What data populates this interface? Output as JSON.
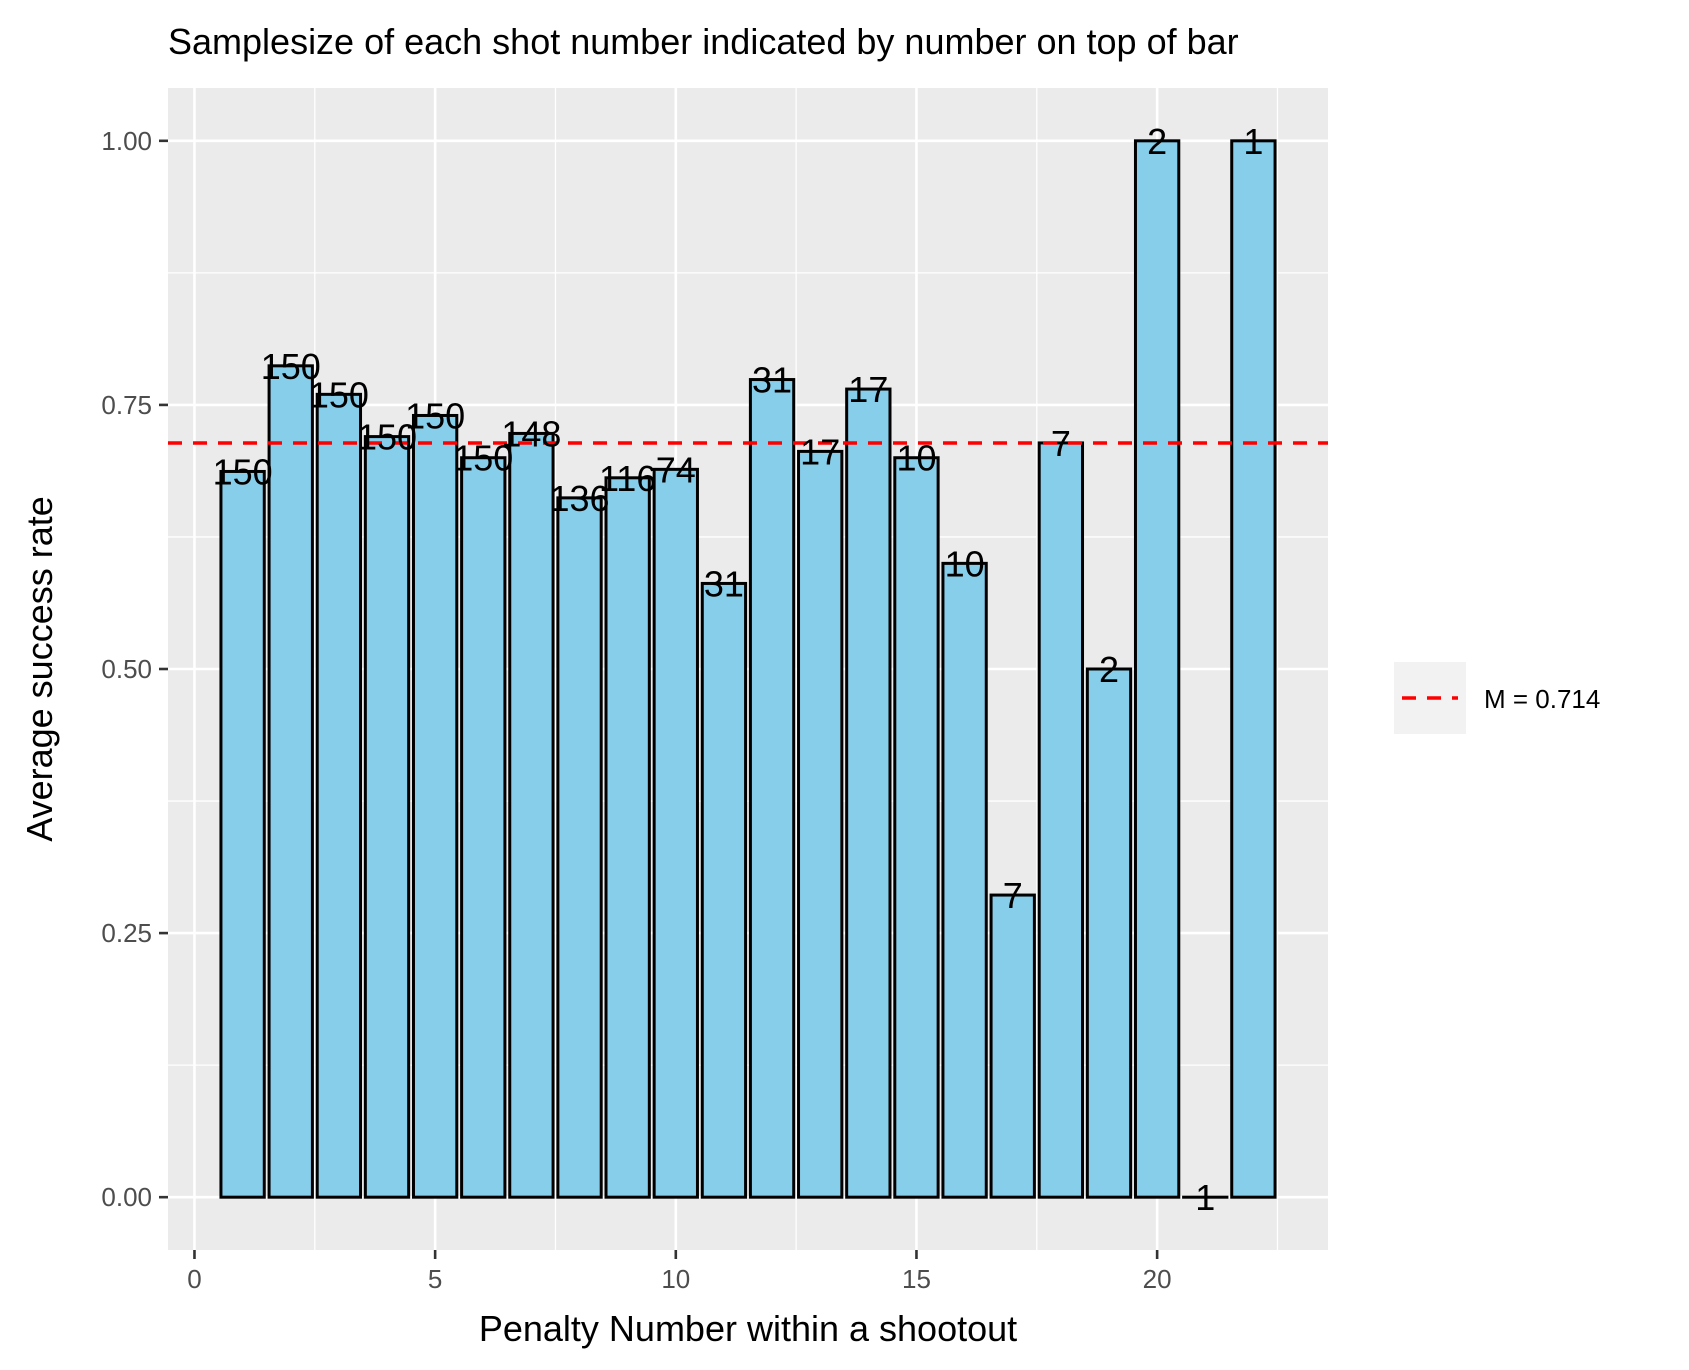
{
  "chart_data": {
    "type": "bar",
    "title": "Samplesize of each shot number indicated by number on top of bar",
    "xlabel": "Penalty Number within a shootout",
    "ylabel": "Average success rate",
    "x": [
      1,
      2,
      3,
      4,
      5,
      6,
      7,
      8,
      9,
      10,
      11,
      12,
      13,
      14,
      15,
      16,
      17,
      18,
      19,
      20,
      21,
      22
    ],
    "values": [
      0.687,
      0.787,
      0.76,
      0.72,
      0.74,
      0.7,
      0.723,
      0.662,
      0.681,
      0.689,
      0.581,
      0.774,
      0.706,
      0.765,
      0.7,
      0.6,
      0.286,
      0.714,
      0.5,
      1.0,
      0.0,
      1.0
    ],
    "bar_labels": [
      "150",
      "150",
      "150",
      "150",
      "150",
      "150",
      "148",
      "136",
      "116",
      "74",
      "31",
      "31",
      "17",
      "17",
      "10",
      "10",
      "7",
      "7",
      "2",
      "2",
      "1",
      "1"
    ],
    "xlim": [
      -0.55,
      23.55
    ],
    "ylim": [
      -0.05,
      1.05
    ],
    "xticks": [
      0,
      5,
      10,
      15,
      20
    ],
    "xtick_labels": [
      "0",
      "5",
      "10",
      "15",
      "20"
    ],
    "yticks": [
      0.0,
      0.25,
      0.5,
      0.75,
      1.0
    ],
    "ytick_labels": [
      "0.00",
      "0.25",
      "0.50",
      "0.75",
      "1.00"
    ],
    "mean_line": {
      "value": 0.714,
      "label": "M = 0.714",
      "color": "#ff0000",
      "style": "dashed"
    },
    "bar_fill": "#87ceeb",
    "bar_outline": "#000000",
    "panel_background": "#ebebeb",
    "grid": true,
    "legend": {
      "position": "right",
      "entries": [
        "M = 0.714"
      ]
    }
  }
}
